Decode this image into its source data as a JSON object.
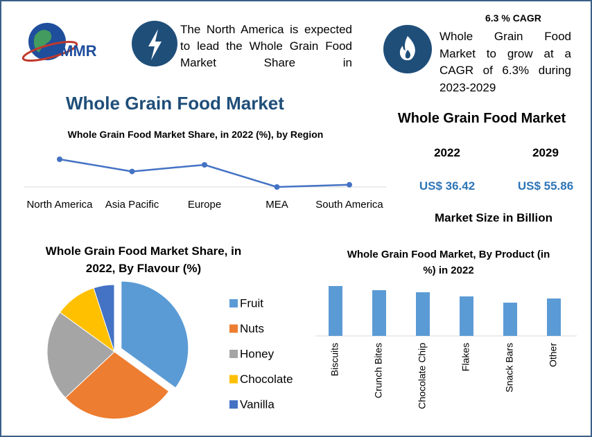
{
  "header": {
    "logo_text": "MMR",
    "region_text": "The North America is expected to lead the Whole Grain Food Market Share in",
    "cagr_title": "6.3 % CAGR",
    "cagr_text": "Whole Grain Food Market to grow at a CAGR of 6.3% during 2023-2029"
  },
  "main_title": "Whole Grain Food Market",
  "market_size": {
    "title": "Whole Grain Food Market",
    "years": [
      "2022",
      "2029"
    ],
    "values": [
      "US$ 36.42",
      "US$ 55.86"
    ],
    "caption": "Market Size in Billion"
  },
  "chart_data": [
    {
      "type": "line",
      "title": "Whole Grain Food Market Share, in 2022 (%), by Region",
      "categories": [
        "North America",
        "Asia Pacific",
        "Europe",
        "MEA",
        "South America"
      ],
      "values": [
        35,
        24,
        30,
        10,
        12
      ],
      "color": "#4472c4"
    },
    {
      "type": "pie",
      "title": "Whole Grain Food Market Share, in 2022, By Flavour (%)",
      "categories": [
        "Fruit",
        "Nuts",
        "Honey",
        "Chocolate",
        "Vanilla"
      ],
      "values": [
        35,
        28,
        22,
        10,
        5
      ],
      "colors": [
        "#5b9bd5",
        "#ed7d31",
        "#a5a5a5",
        "#ffc000",
        "#4472c4"
      ]
    },
    {
      "type": "bar",
      "title": "Whole Grain Food Market, By Product (in %) in 2022",
      "categories": [
        "Biscuits",
        "Crunch Bites",
        "Chocolate Chip",
        "Flakes",
        "Snack Bars",
        "Other"
      ],
      "values": [
        24,
        22,
        21,
        19,
        16,
        18
      ],
      "color": "#5b9bd5"
    }
  ]
}
